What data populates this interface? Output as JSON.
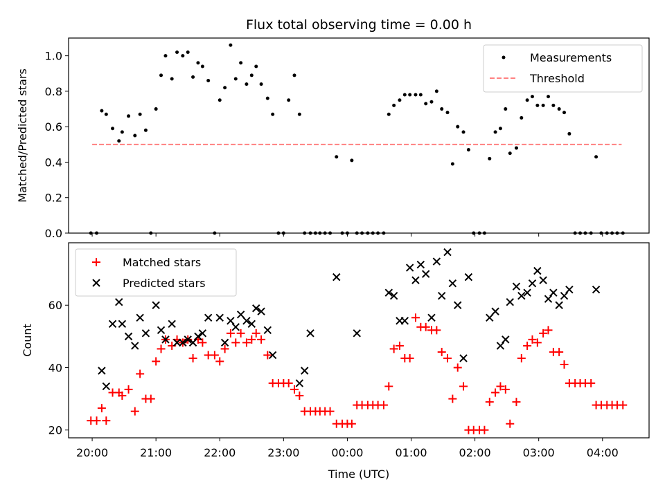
{
  "chart_data": [
    {
      "type": "scatter",
      "title": "Flux total observing time = 0.00 h",
      "ylabel": "Matched/Predicted stars",
      "xlabel": "",
      "xlim_hours": [
        19.63,
        28.73
      ],
      "ylim": [
        0,
        1.1
      ],
      "yticks": [
        0.0,
        0.2,
        0.4,
        0.6,
        0.8,
        1.0
      ],
      "ytick_labels": [
        "0.0",
        "0.2",
        "0.4",
        "0.6",
        "0.8",
        "1.0"
      ],
      "legend": {
        "position": "upper right",
        "entries": [
          "Measurements",
          "Threshold"
        ]
      },
      "series": [
        {
          "name": "Measurements",
          "color": "#000000",
          "marker": "dot",
          "x": [
            19.98,
            20.07,
            20.15,
            20.22,
            20.32,
            20.42,
            20.47,
            20.57,
            20.67,
            20.75,
            20.84,
            20.92,
            21.0,
            21.08,
            21.15,
            21.25,
            21.33,
            21.42,
            21.5,
            21.58,
            21.66,
            21.73,
            21.82,
            21.92,
            22.0,
            22.08,
            22.17,
            22.25,
            22.33,
            22.42,
            22.5,
            22.57,
            22.65,
            22.75,
            22.83,
            22.92,
            23.0,
            23.08,
            23.17,
            23.25,
            23.33,
            23.42,
            23.5,
            23.57,
            23.65,
            23.73,
            23.83,
            23.92,
            24.0,
            24.07,
            24.15,
            24.23,
            24.32,
            24.4,
            24.48,
            24.57,
            24.65,
            24.73,
            24.82,
            24.9,
            24.98,
            25.07,
            25.15,
            25.23,
            25.32,
            25.4,
            25.48,
            25.57,
            25.65,
            25.73,
            25.82,
            25.9,
            25.98,
            26.07,
            26.15,
            26.23,
            26.32,
            26.4,
            26.48,
            26.55,
            26.65,
            26.73,
            26.82,
            26.9,
            26.98,
            27.07,
            27.15,
            27.23,
            27.32,
            27.4,
            27.48,
            27.57,
            27.65,
            27.73,
            27.82,
            27.9,
            27.98,
            28.07,
            28.15,
            28.23,
            28.32
          ],
          "y": [
            0,
            0,
            0.69,
            0.67,
            0.59,
            0.52,
            0.57,
            0.66,
            0.55,
            0.67,
            0.58,
            0,
            0.7,
            0.89,
            1.0,
            0.87,
            1.02,
            1.0,
            1.02,
            0.88,
            0.96,
            0.94,
            0.86,
            0,
            0.75,
            0.82,
            1.06,
            0.87,
            0.96,
            0.84,
            0.89,
            0.94,
            0.84,
            0.76,
            0.67,
            0,
            0,
            0.75,
            0.89,
            0.67,
            0,
            0,
            0,
            0,
            0,
            0,
            0.43,
            0,
            0,
            0.41,
            0,
            0,
            0,
            0,
            0,
            0,
            0.67,
            0.72,
            0.75,
            0.78,
            0.78,
            0.78,
            0.78,
            0.73,
            0.74,
            0.8,
            0.7,
            0.68,
            0.39,
            0.6,
            0.57,
            0.47,
            0,
            0,
            0,
            0.42,
            0.57,
            0.59,
            0.7,
            0.45,
            0.48,
            0.65,
            0.75,
            0.77,
            0.72,
            0.72,
            0.77,
            0.72,
            0.7,
            0.68,
            0.56,
            0,
            0,
            0,
            0,
            0.43,
            0,
            0,
            0,
            0,
            0
          ]
        },
        {
          "name": "Threshold",
          "color": "#ff8080",
          "line": "dashed",
          "x": [
            20.0,
            28.3
          ],
          "y": [
            0.5,
            0.5
          ]
        }
      ]
    },
    {
      "type": "scatter",
      "title": "",
      "ylabel": "Count",
      "xlabel": "Time (UTC)",
      "xlim_hours": [
        19.63,
        28.73
      ],
      "ylim": [
        17.5,
        80
      ],
      "yticks": [
        20,
        40,
        60
      ],
      "ytick_labels": [
        "20",
        "40",
        "60"
      ],
      "xticks_hours": [
        20,
        21,
        22,
        23,
        24,
        25,
        26,
        27,
        28
      ],
      "xtick_labels": [
        "20:00",
        "21:00",
        "22:00",
        "23:00",
        "00:00",
        "01:00",
        "02:00",
        "03:00",
        "04:00"
      ],
      "legend": {
        "position": "upper left",
        "entries": [
          "Matched stars",
          "Predicted stars"
        ]
      },
      "series": [
        {
          "name": "Matched stars",
          "color": "#ff0000",
          "marker": "plus",
          "x": [
            19.98,
            20.07,
            20.15,
            20.22,
            20.32,
            20.42,
            20.47,
            20.57,
            20.67,
            20.75,
            20.84,
            20.92,
            21.0,
            21.08,
            21.15,
            21.25,
            21.33,
            21.42,
            21.5,
            21.58,
            21.66,
            21.73,
            21.82,
            21.92,
            22.0,
            22.08,
            22.17,
            22.25,
            22.33,
            22.42,
            22.5,
            22.57,
            22.65,
            22.75,
            22.83,
            22.92,
            23.0,
            23.08,
            23.17,
            23.25,
            23.33,
            23.42,
            23.5,
            23.57,
            23.65,
            23.73,
            23.83,
            23.92,
            24.0,
            24.07,
            24.15,
            24.23,
            24.32,
            24.4,
            24.48,
            24.57,
            24.65,
            24.73,
            24.82,
            24.9,
            24.98,
            25.07,
            25.15,
            25.23,
            25.32,
            25.4,
            25.48,
            25.57,
            25.65,
            25.73,
            25.82,
            25.9,
            25.98,
            26.07,
            26.15,
            26.23,
            26.32,
            26.4,
            26.48,
            26.55,
            26.65,
            26.73,
            26.82,
            26.9,
            26.98,
            27.07,
            27.15,
            27.23,
            27.32,
            27.4,
            27.48,
            27.57,
            27.65,
            27.73,
            27.82,
            27.9,
            27.98,
            28.07,
            28.15,
            28.23,
            28.32
          ],
          "y": [
            23,
            23,
            27,
            23,
            32,
            32,
            31,
            33,
            26,
            38,
            30,
            30,
            42,
            46,
            49,
            47,
            49,
            48,
            49,
            43,
            49,
            48,
            44,
            44,
            42,
            46,
            51,
            48,
            51,
            48,
            49,
            51,
            49,
            44,
            35,
            35,
            35,
            35,
            33,
            31,
            26,
            26,
            26,
            26,
            26,
            26,
            22,
            22,
            22,
            22,
            28,
            28,
            28,
            28,
            28,
            28,
            34,
            46,
            47,
            43,
            43,
            56,
            53,
            53,
            52,
            52,
            45,
            43,
            30,
            40,
            34,
            20,
            20,
            20,
            20,
            29,
            32,
            34,
            33,
            22,
            29,
            43,
            47,
            49,
            48,
            51,
            52,
            45,
            45,
            41,
            35,
            35,
            35,
            35,
            35,
            28,
            28,
            28,
            28,
            28,
            28
          ]
        },
        {
          "name": "Predicted stars",
          "color": "#000000",
          "marker": "x",
          "x": [
            20.15,
            20.22,
            20.32,
            20.42,
            20.47,
            20.57,
            20.67,
            20.75,
            20.84,
            21.0,
            21.08,
            21.15,
            21.25,
            21.33,
            21.42,
            21.5,
            21.58,
            21.66,
            21.73,
            21.82,
            22.0,
            22.08,
            22.17,
            22.25,
            22.33,
            22.42,
            22.5,
            22.57,
            22.65,
            22.75,
            22.83,
            23.25,
            23.33,
            23.42,
            23.83,
            24.15,
            24.65,
            24.73,
            24.82,
            24.9,
            24.98,
            25.07,
            25.15,
            25.23,
            25.32,
            25.4,
            25.48,
            25.57,
            25.65,
            25.73,
            25.82,
            25.9,
            26.23,
            26.32,
            26.4,
            26.48,
            26.55,
            26.65,
            26.73,
            26.82,
            26.9,
            26.98,
            27.07,
            27.15,
            27.23,
            27.32,
            27.4,
            27.48,
            27.9
          ],
          "y": [
            39,
            34,
            54,
            61,
            54,
            50,
            47,
            56,
            51,
            60,
            52,
            49,
            54,
            48,
            48,
            49,
            48,
            50,
            51,
            56,
            56,
            48,
            55,
            53,
            57,
            55,
            54,
            59,
            58,
            52,
            44,
            35,
            39,
            51,
            69,
            51,
            64,
            63,
            55,
            55,
            72,
            68,
            73,
            70,
            56,
            74,
            63,
            77,
            67,
            60,
            43,
            69,
            56,
            58,
            47,
            49,
            61,
            66,
            63,
            64,
            67,
            71,
            68,
            62,
            64,
            60,
            63,
            65,
            65
          ]
        }
      ]
    }
  ]
}
